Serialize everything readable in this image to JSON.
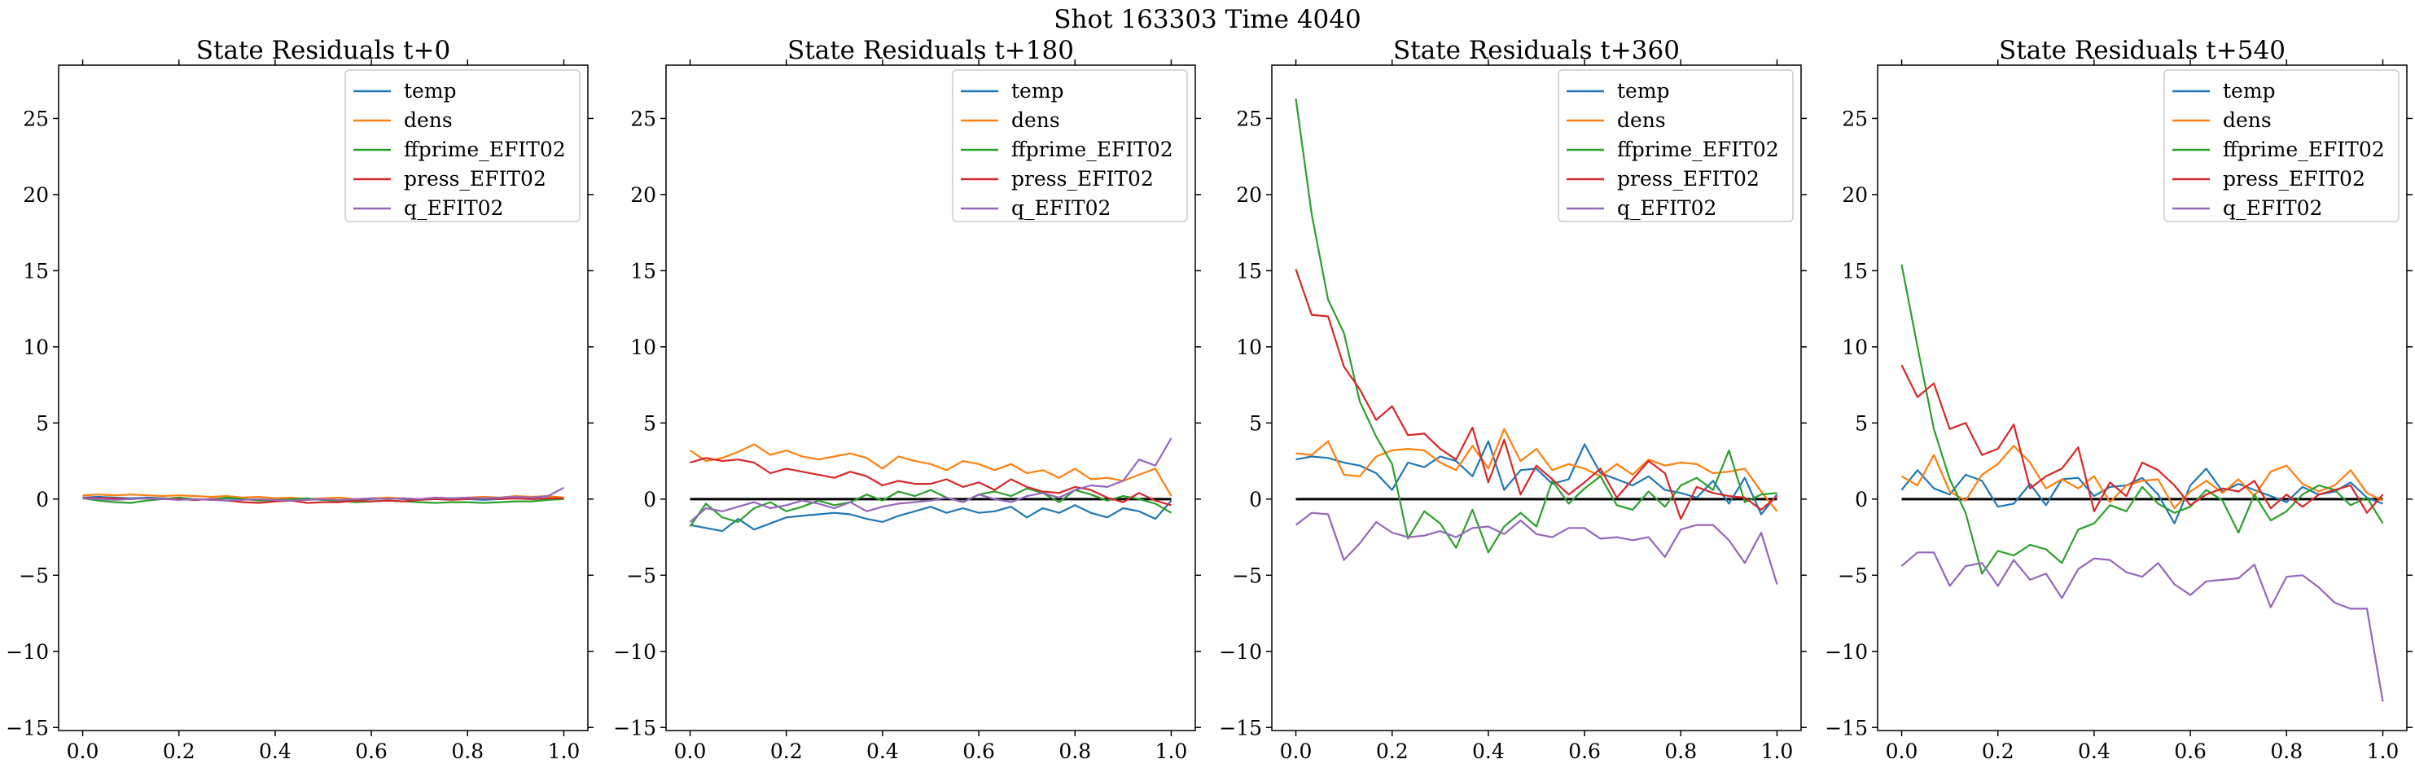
{
  "suptitle": "Shot 163303   Time 4040",
  "chart_data": [
    {
      "type": "line",
      "title": "State Residuals t+0",
      "xlabel": "",
      "ylabel": "",
      "xlim": [
        -0.05,
        1.05
      ],
      "ylim": [
        -15.2,
        28.5
      ],
      "xticks": [
        "0.0",
        "0.2",
        "0.4",
        "0.6",
        "0.8",
        "1.0"
      ],
      "yticks": [
        "−15",
        "−10",
        "−5",
        "0",
        "5",
        "10",
        "15",
        "20",
        "25"
      ],
      "legend": "top-right",
      "zero_line": false,
      "x": [
        0.0,
        0.033,
        0.067,
        0.1,
        0.133,
        0.167,
        0.2,
        0.233,
        0.267,
        0.3,
        0.333,
        0.367,
        0.4,
        0.433,
        0.467,
        0.5,
        0.533,
        0.567,
        0.6,
        0.633,
        0.667,
        0.7,
        0.733,
        0.767,
        0.8,
        0.833,
        0.867,
        0.9,
        0.933,
        0.967,
        1.0
      ],
      "series": [
        {
          "name": "temp",
          "color": "#1f77b4",
          "values": [
            0.1,
            0.15,
            0.1,
            0.05,
            0.1,
            0.05,
            0.0,
            -0.05,
            0.0,
            0.05,
            0.0,
            -0.05,
            -0.1,
            -0.05,
            0.0,
            -0.05,
            -0.1,
            -0.05,
            0.0,
            0.05,
            0.0,
            -0.05,
            0.0,
            0.05,
            0.0,
            -0.05,
            0.0,
            0.05,
            0.0,
            0.05,
            0.0
          ]
        },
        {
          "name": "dens",
          "color": "#ff7f0e",
          "values": [
            0.25,
            0.3,
            0.25,
            0.3,
            0.25,
            0.2,
            0.25,
            0.2,
            0.15,
            0.2,
            0.1,
            0.15,
            0.05,
            0.1,
            0.0,
            0.05,
            0.1,
            0.0,
            0.05,
            0.1,
            0.05,
            0.0,
            0.1,
            0.05,
            0.1,
            0.15,
            0.1,
            0.2,
            0.15,
            0.2,
            0.1
          ]
        },
        {
          "name": "ffprime_EFIT02",
          "color": "#2ca02c",
          "values": [
            0.05,
            -0.1,
            -0.2,
            -0.25,
            -0.1,
            0.0,
            0.1,
            0.0,
            -0.05,
            0.1,
            0.0,
            -0.1,
            -0.05,
            0.0,
            0.05,
            -0.05,
            -0.1,
            -0.2,
            -0.15,
            -0.1,
            -0.15,
            -0.2,
            -0.25,
            -0.2,
            -0.2,
            -0.25,
            -0.2,
            -0.15,
            -0.15,
            -0.05,
            0.0
          ]
        },
        {
          "name": "press_EFIT02",
          "color": "#d62728",
          "values": [
            0.1,
            0.05,
            0.05,
            0.0,
            0.05,
            0.0,
            0.0,
            -0.05,
            0.0,
            -0.1,
            -0.2,
            -0.25,
            -0.15,
            -0.1,
            -0.25,
            -0.2,
            -0.2,
            -0.1,
            -0.15,
            -0.1,
            -0.15,
            -0.05,
            0.0,
            -0.05,
            0.0,
            0.05,
            0.0,
            0.05,
            0.0,
            0.05,
            0.05
          ]
        },
        {
          "name": "q_EFIT02",
          "color": "#9467bd",
          "values": [
            0.05,
            0.0,
            -0.05,
            0.0,
            0.05,
            0.0,
            -0.05,
            0.0,
            -0.05,
            -0.1,
            -0.05,
            0.0,
            -0.05,
            -0.1,
            -0.05,
            0.0,
            -0.05,
            0.0,
            0.05,
            0.0,
            0.05,
            0.0,
            0.1,
            0.05,
            0.1,
            0.05,
            0.1,
            0.15,
            0.1,
            0.2,
            0.75
          ]
        }
      ]
    },
    {
      "type": "line",
      "title": "State Residuals t+180",
      "xlabel": "",
      "ylabel": "",
      "xlim": [
        -0.05,
        1.05
      ],
      "ylim": [
        -15.2,
        28.5
      ],
      "xticks": [
        "0.0",
        "0.2",
        "0.4",
        "0.6",
        "0.8",
        "1.0"
      ],
      "yticks": [
        "−15",
        "−10",
        "−5",
        "0",
        "5",
        "10",
        "15",
        "20",
        "25"
      ],
      "legend": "top-right",
      "zero_line": true,
      "x": [
        0.0,
        0.033,
        0.067,
        0.1,
        0.133,
        0.167,
        0.2,
        0.233,
        0.267,
        0.3,
        0.333,
        0.367,
        0.4,
        0.433,
        0.467,
        0.5,
        0.533,
        0.567,
        0.6,
        0.633,
        0.667,
        0.7,
        0.733,
        0.767,
        0.8,
        0.833,
        0.867,
        0.9,
        0.933,
        0.967,
        1.0
      ],
      "series": [
        {
          "name": "temp",
          "color": "#1f77b4",
          "values": [
            -1.7,
            -1.9,
            -2.1,
            -1.3,
            -2.0,
            -1.6,
            -1.2,
            -1.1,
            -1.0,
            -0.9,
            -1.0,
            -1.3,
            -1.5,
            -1.1,
            -0.8,
            -0.5,
            -0.9,
            -0.6,
            -0.9,
            -0.8,
            -0.5,
            -1.2,
            -0.6,
            -0.9,
            -0.4,
            -0.9,
            -1.2,
            -0.6,
            -0.8,
            -1.3,
            -0.1
          ]
        },
        {
          "name": "dens",
          "color": "#ff7f0e",
          "values": [
            3.2,
            2.5,
            2.7,
            3.1,
            3.6,
            2.9,
            3.2,
            2.8,
            2.6,
            2.8,
            3.0,
            2.7,
            2.0,
            2.8,
            2.5,
            2.3,
            1.9,
            2.5,
            2.3,
            1.9,
            2.3,
            1.7,
            1.9,
            1.4,
            2.0,
            1.3,
            1.4,
            1.2,
            1.6,
            2.0,
            0.2
          ]
        },
        {
          "name": "ffprime_EFIT02",
          "color": "#2ca02c",
          "values": [
            -1.8,
            -0.3,
            -1.2,
            -1.5,
            -0.6,
            -0.2,
            -0.8,
            -0.5,
            -0.1,
            -0.4,
            -0.2,
            0.3,
            -0.1,
            0.5,
            0.2,
            0.6,
            0.1,
            -0.2,
            0.3,
            0.5,
            0.2,
            0.7,
            0.4,
            -0.2,
            0.6,
            0.3,
            -0.1,
            0.2,
            0.0,
            -0.3,
            -0.9
          ]
        },
        {
          "name": "press_EFIT02",
          "color": "#d62728",
          "values": [
            2.4,
            2.7,
            2.5,
            2.6,
            2.4,
            1.7,
            2.0,
            1.8,
            1.6,
            1.4,
            1.8,
            1.5,
            0.9,
            1.2,
            1.0,
            1.0,
            1.3,
            0.8,
            1.1,
            0.6,
            1.3,
            0.8,
            0.5,
            0.4,
            0.8,
            0.6,
            0.1,
            -0.2,
            0.4,
            -0.1,
            -0.4
          ]
        },
        {
          "name": "q_EFIT02",
          "color": "#9467bd",
          "values": [
            -1.5,
            -0.6,
            -0.8,
            -0.5,
            -0.2,
            -0.6,
            -0.4,
            -0.1,
            -0.3,
            -0.6,
            -0.2,
            -0.8,
            -0.5,
            -0.3,
            -0.2,
            -0.1,
            0.1,
            -0.2,
            0.3,
            0.0,
            -0.2,
            0.2,
            0.4,
            0.1,
            0.6,
            0.9,
            0.8,
            1.2,
            2.6,
            2.2,
            4.0
          ]
        }
      ]
    },
    {
      "type": "line",
      "title": "State Residuals t+360",
      "xlabel": "",
      "ylabel": "",
      "xlim": [
        -0.05,
        1.05
      ],
      "ylim": [
        -15.2,
        28.5
      ],
      "xticks": [
        "0.0",
        "0.2",
        "0.4",
        "0.6",
        "0.8",
        "1.0"
      ],
      "yticks": [
        "−15",
        "−10",
        "−5",
        "0",
        "5",
        "10",
        "15",
        "20",
        "25"
      ],
      "legend": "top-right",
      "zero_line": true,
      "x": [
        0.0,
        0.033,
        0.067,
        0.1,
        0.133,
        0.167,
        0.2,
        0.233,
        0.267,
        0.3,
        0.333,
        0.367,
        0.4,
        0.433,
        0.467,
        0.5,
        0.533,
        0.567,
        0.6,
        0.633,
        0.667,
        0.7,
        0.733,
        0.767,
        0.8,
        0.833,
        0.867,
        0.9,
        0.933,
        0.967,
        1.0
      ],
      "series": [
        {
          "name": "temp",
          "color": "#1f77b4",
          "values": [
            2.6,
            2.8,
            2.7,
            2.4,
            2.2,
            1.7,
            0.6,
            2.4,
            2.1,
            2.8,
            2.5,
            1.5,
            3.8,
            0.6,
            1.9,
            2.0,
            1.0,
            1.3,
            3.6,
            1.7,
            1.3,
            0.9,
            1.5,
            0.6,
            0.4,
            0.1,
            1.2,
            -0.3,
            1.4,
            -1.0,
            0.3
          ]
        },
        {
          "name": "dens",
          "color": "#ff7f0e",
          "values": [
            3.0,
            2.9,
            3.8,
            1.6,
            1.5,
            2.8,
            3.2,
            3.3,
            3.2,
            2.4,
            1.9,
            3.5,
            2.0,
            4.6,
            2.5,
            3.3,
            1.9,
            2.3,
            2.0,
            1.5,
            2.3,
            1.6,
            2.6,
            2.2,
            2.4,
            2.3,
            1.7,
            1.8,
            2.0,
            0.5,
            -0.8
          ]
        },
        {
          "name": "ffprime_EFIT02",
          "color": "#2ca02c",
          "values": [
            26.3,
            18.7,
            13.1,
            10.9,
            6.4,
            4.1,
            2.3,
            -2.6,
            -0.8,
            -1.6,
            -3.2,
            -0.7,
            -3.5,
            -1.8,
            -0.9,
            -1.8,
            1.2,
            -0.3,
            0.7,
            1.5,
            -0.4,
            -0.7,
            0.5,
            -0.5,
            0.9,
            1.4,
            0.6,
            3.2,
            -0.2,
            0.3,
            0.4
          ]
        },
        {
          "name": "press_EFIT02",
          "color": "#d62728",
          "values": [
            15.1,
            12.1,
            12.0,
            8.7,
            7.2,
            5.2,
            6.1,
            4.2,
            4.3,
            3.3,
            2.6,
            4.7,
            1.1,
            3.9,
            0.3,
            2.2,
            1.3,
            0.3,
            1.1,
            2.0,
            0.1,
            1.3,
            2.5,
            1.7,
            -1.3,
            0.8,
            0.4,
            0.2,
            0.1,
            -0.7,
            0.2
          ]
        },
        {
          "name": "q_EFIT02",
          "color": "#9467bd",
          "values": [
            -1.7,
            -0.9,
            -1.0,
            -4.0,
            -2.9,
            -1.5,
            -2.2,
            -2.5,
            -2.4,
            -2.1,
            -2.5,
            -1.9,
            -1.8,
            -2.3,
            -1.4,
            -2.3,
            -2.5,
            -1.9,
            -1.9,
            -2.6,
            -2.5,
            -2.7,
            -2.5,
            -3.8,
            -2.0,
            -1.7,
            -1.7,
            -2.7,
            -4.2,
            -2.2,
            -5.6
          ]
        }
      ]
    },
    {
      "type": "line",
      "title": "State Residuals t+540",
      "xlabel": "",
      "ylabel": "",
      "xlim": [
        -0.05,
        1.05
      ],
      "ylim": [
        -15.2,
        28.5
      ],
      "xticks": [
        "0.0",
        "0.2",
        "0.4",
        "0.6",
        "0.8",
        "1.0"
      ],
      "yticks": [
        "−15",
        "−10",
        "−5",
        "0",
        "5",
        "10",
        "15",
        "20",
        "25"
      ],
      "legend": "top-right",
      "zero_line": true,
      "x": [
        0.0,
        0.033,
        0.067,
        0.1,
        0.133,
        0.167,
        0.2,
        0.233,
        0.267,
        0.3,
        0.333,
        0.367,
        0.4,
        0.433,
        0.467,
        0.5,
        0.533,
        0.567,
        0.6,
        0.633,
        0.667,
        0.7,
        0.733,
        0.767,
        0.8,
        0.833,
        0.867,
        0.9,
        0.933,
        0.967,
        1.0
      ],
      "series": [
        {
          "name": "temp",
          "color": "#1f77b4",
          "values": [
            0.6,
            1.9,
            0.7,
            0.3,
            1.6,
            1.2,
            -0.5,
            -0.3,
            1.0,
            -0.4,
            1.3,
            1.4,
            0.2,
            0.8,
            0.9,
            1.4,
            0.3,
            -1.6,
            0.9,
            2.0,
            0.5,
            1.0,
            0.6,
            0.2,
            -0.2,
            0.8,
            0.3,
            0.5,
            1.1,
            0.1,
            -0.3
          ]
        },
        {
          "name": "dens",
          "color": "#ff7f0e",
          "values": [
            1.5,
            0.9,
            2.9,
            0.5,
            -0.1,
            1.6,
            2.3,
            3.5,
            2.4,
            0.7,
            1.3,
            0.7,
            1.5,
            -0.2,
            0.9,
            1.2,
            1.3,
            -0.6,
            0.5,
            1.2,
            0.4,
            1.3,
            0.2,
            1.8,
            2.2,
            1.0,
            0.5,
            0.9,
            1.9,
            0.4,
            -0.1
          ]
        },
        {
          "name": "ffprime_EFIT02",
          "color": "#2ca02c",
          "values": [
            15.4,
            10.0,
            4.6,
            1.3,
            -0.9,
            -4.9,
            -3.4,
            -3.7,
            -3.0,
            -3.3,
            -4.2,
            -2.0,
            -1.6,
            -0.4,
            -0.8,
            0.8,
            -0.3,
            -0.9,
            -0.5,
            0.6,
            -0.1,
            -2.2,
            0.3,
            -1.4,
            -0.8,
            0.3,
            0.9,
            0.6,
            -0.4,
            0.1,
            -1.6
          ]
        },
        {
          "name": "press_EFIT02",
          "color": "#d62728",
          "values": [
            8.8,
            6.7,
            7.6,
            4.6,
            5.0,
            2.9,
            3.3,
            4.9,
            0.7,
            1.5,
            2.0,
            3.4,
            -0.8,
            1.1,
            0.2,
            2.4,
            1.9,
            0.9,
            -0.4,
            0.3,
            0.7,
            0.5,
            1.2,
            -0.6,
            0.3,
            -0.5,
            0.3,
            0.6,
            0.9,
            -0.9,
            0.3
          ]
        },
        {
          "name": "q_EFIT02",
          "color": "#9467bd",
          "values": [
            -4.4,
            -3.5,
            -3.5,
            -5.7,
            -4.4,
            -4.2,
            -5.7,
            -4.0,
            -5.3,
            -4.9,
            -6.5,
            -4.6,
            -3.9,
            -4.0,
            -4.8,
            -5.1,
            -4.2,
            -5.6,
            -6.3,
            -5.4,
            -5.3,
            -5.2,
            -4.3,
            -7.1,
            -5.1,
            -5.0,
            -5.8,
            -6.8,
            -7.2,
            -7.2,
            -13.3
          ]
        }
      ]
    }
  ]
}
